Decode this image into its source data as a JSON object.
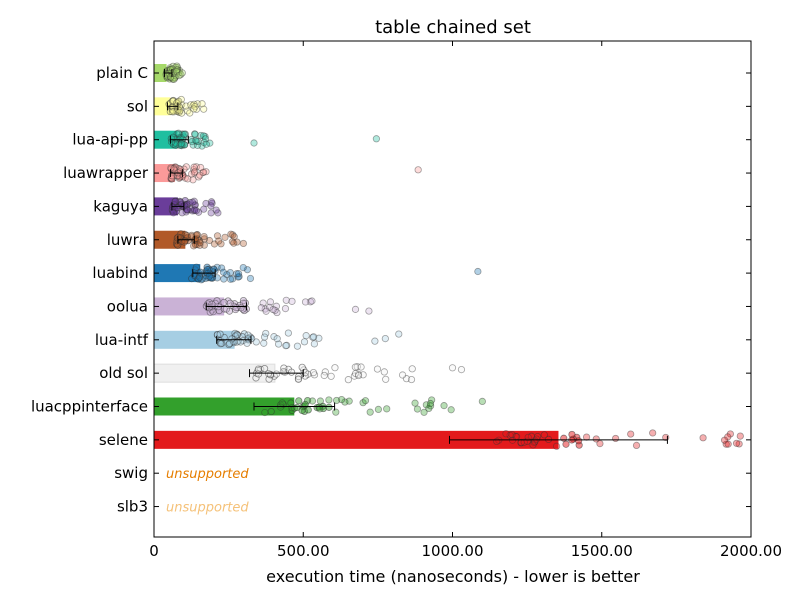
{
  "chart_data": {
    "type": "bar",
    "title": "table chained set",
    "xlabel": "execution time (nanoseconds) - lower is better",
    "ylabel": "",
    "xlim": [
      0,
      2000
    ],
    "orientation": "horizontal",
    "x_ticks": [
      {
        "value": 0,
        "label": "0"
      },
      {
        "value": 500,
        "label": "500.00"
      },
      {
        "value": 1000,
        "label": "1000.00"
      },
      {
        "value": 1500,
        "label": "1500.00"
      },
      {
        "value": 2000,
        "label": "2000.00"
      }
    ],
    "categories": [
      "plain C",
      "sol",
      "lua-api-pp",
      "luawrapper",
      "kaguya",
      "luwra",
      "luabind",
      "oolua",
      "lua-intf",
      "old sol",
      "luacppinterface",
      "selene",
      "swig",
      "slb3"
    ],
    "bars": [
      {
        "name": "plain C",
        "value": 42,
        "err_low": 35,
        "err_high": 60,
        "color": "#a6d96a",
        "scatter_min": 40,
        "scatter_max": 95,
        "outliers": []
      },
      {
        "name": "sol",
        "value": 55,
        "err_low": 45,
        "err_high": 80,
        "color": "#ffff99",
        "scatter_min": 50,
        "scatter_max": 170,
        "outliers": []
      },
      {
        "name": "lua-api-pp",
        "value": 78,
        "err_low": 55,
        "err_high": 115,
        "color": "#1fbfa0",
        "scatter_min": 55,
        "scatter_max": 200,
        "outliers": [
          335,
          745
        ]
      },
      {
        "name": "luawrapper",
        "value": 70,
        "err_low": 55,
        "err_high": 95,
        "color": "#fb9a99",
        "scatter_min": 55,
        "scatter_max": 175,
        "outliers": [
          885
        ]
      },
      {
        "name": "kaguya",
        "value": 80,
        "err_low": 60,
        "err_high": 100,
        "color": "#6a3d9a",
        "scatter_min": 60,
        "scatter_max": 220,
        "outliers": []
      },
      {
        "name": "luwra",
        "value": 105,
        "err_low": 80,
        "err_high": 135,
        "color": "#b15928",
        "scatter_min": 75,
        "scatter_max": 300,
        "outliers": []
      },
      {
        "name": "luabind",
        "value": 155,
        "err_low": 130,
        "err_high": 205,
        "color": "#1f78b4",
        "scatter_min": 125,
        "scatter_max": 330,
        "outliers": [
          1085
        ]
      },
      {
        "name": "oolua",
        "value": 235,
        "err_low": 175,
        "err_high": 310,
        "color": "#cab2d6",
        "scatter_min": 175,
        "scatter_max": 570,
        "outliers": [
          675,
          720
        ]
      },
      {
        "name": "lua-intf",
        "value": 270,
        "err_low": 210,
        "err_high": 325,
        "color": "#a6cee3",
        "scatter_min": 210,
        "scatter_max": 560,
        "outliers": [
          740,
          775,
          820
        ]
      },
      {
        "name": "old sol",
        "value": 405,
        "err_low": 320,
        "err_high": 500,
        "color": "#f0f0f0",
        "scatter_min": 330,
        "scatter_max": 880,
        "outliers": [
          1000,
          1030
        ]
      },
      {
        "name": "luacppinterface",
        "value": 470,
        "err_low": 335,
        "err_high": 605,
        "color": "#33a02c",
        "scatter_min": 370,
        "scatter_max": 1020,
        "outliers": [
          1100
        ]
      },
      {
        "name": "selene",
        "value": 1355,
        "err_low": 990,
        "err_high": 1720,
        "color": "#e31a1c",
        "scatter_min": 1130,
        "scatter_max": 1995,
        "outliers": []
      }
    ],
    "unsupported": [
      {
        "name": "swig",
        "text": "unsupported",
        "color": "#e67e00"
      },
      {
        "name": "slb3",
        "text": "unsupported",
        "color": "#f5c27a"
      }
    ],
    "grid": false,
    "legend": "none"
  }
}
